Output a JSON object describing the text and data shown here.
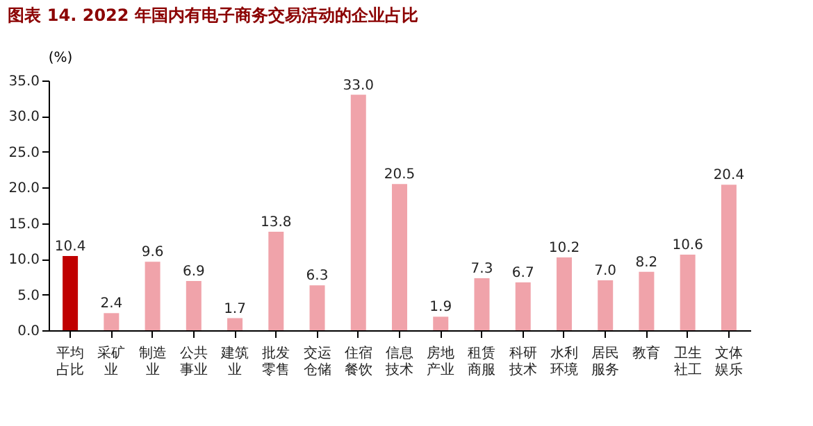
{
  "chart_data": {
    "type": "bar",
    "title": "图表 14. 2022 年国内有电子商务交易活动的企业占比",
    "ylabel": "(%)",
    "categories": [
      "平均占比",
      "采矿业",
      "制造业",
      "公共事业",
      "建筑业",
      "批发零售",
      "交运仓储",
      "住宿餐饮",
      "信息技术",
      "房地产业",
      "租赁商服",
      "科研技术",
      "水利环境",
      "居民服务",
      "教育",
      "卫生社工",
      "文体娱乐"
    ],
    "values": [
      10.4,
      2.4,
      9.6,
      6.9,
      1.7,
      13.8,
      6.3,
      33.0,
      20.5,
      1.9,
      7.3,
      6.7,
      10.2,
      7.0,
      8.2,
      10.6,
      20.4
    ],
    "value_labels": [
      "10.4",
      "2.4",
      "9.6",
      "6.9",
      "1.7",
      "13.8",
      "6.3",
      "33.0",
      "20.5",
      "1.9",
      "7.3",
      "6.7",
      "10.2",
      "7.0",
      "8.2",
      "10.6",
      "20.4"
    ],
    "colors": [
      "#c00000",
      "#f0a3aa",
      "#f0a3aa",
      "#f0a3aa",
      "#f0a3aa",
      "#f0a3aa",
      "#f0a3aa",
      "#f0a3aa",
      "#f0a3aa",
      "#f0a3aa",
      "#f0a3aa",
      "#f0a3aa",
      "#f0a3aa",
      "#f0a3aa",
      "#f0a3aa",
      "#f0a3aa",
      "#f0a3aa"
    ],
    "ylim": [
      0,
      35
    ],
    "yticks": [
      {
        "value": 0,
        "label": "0.0"
      },
      {
        "value": 5,
        "label": "5.0"
      },
      {
        "value": 10,
        "label": "10.0"
      },
      {
        "value": 15,
        "label": "15.0"
      },
      {
        "value": 20,
        "label": "20.0"
      },
      {
        "value": 25,
        "label": "25.0"
      },
      {
        "value": 30,
        "label": "30.0"
      },
      {
        "value": 35,
        "label": "35.0"
      }
    ],
    "grid": false,
    "legend": false
  }
}
